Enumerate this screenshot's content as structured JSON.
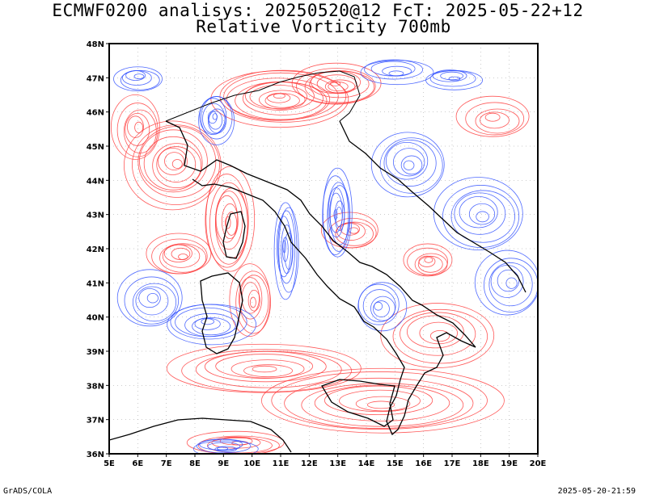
{
  "title_line1": "ECMWF0200 analisys: 20250520@12 FcT: 2025-05-22+12",
  "title_line2": "Relative Vorticity 700mb",
  "footer_left": "GrADS/COLA",
  "footer_right": "2025-05-20-21:59",
  "colors": {
    "positive_vorticity": "#ff3b3b",
    "negative_vorticity": "#3050ff",
    "coastline": "#000000",
    "grid": "#999999"
  },
  "map": {
    "lon_range": [
      5,
      20
    ],
    "lat_range": [
      36,
      48
    ],
    "lon_ticks": [
      "5E",
      "6E",
      "7E",
      "8E",
      "9E",
      "10E",
      "11E",
      "12E",
      "13E",
      "14E",
      "15E",
      "16E",
      "17E",
      "18E",
      "19E",
      "20E"
    ],
    "lat_ticks": [
      "36N",
      "37N",
      "38N",
      "39N",
      "40N",
      "41N",
      "42N",
      "43N",
      "44N",
      "45N",
      "46N",
      "47N",
      "48N"
    ]
  }
}
